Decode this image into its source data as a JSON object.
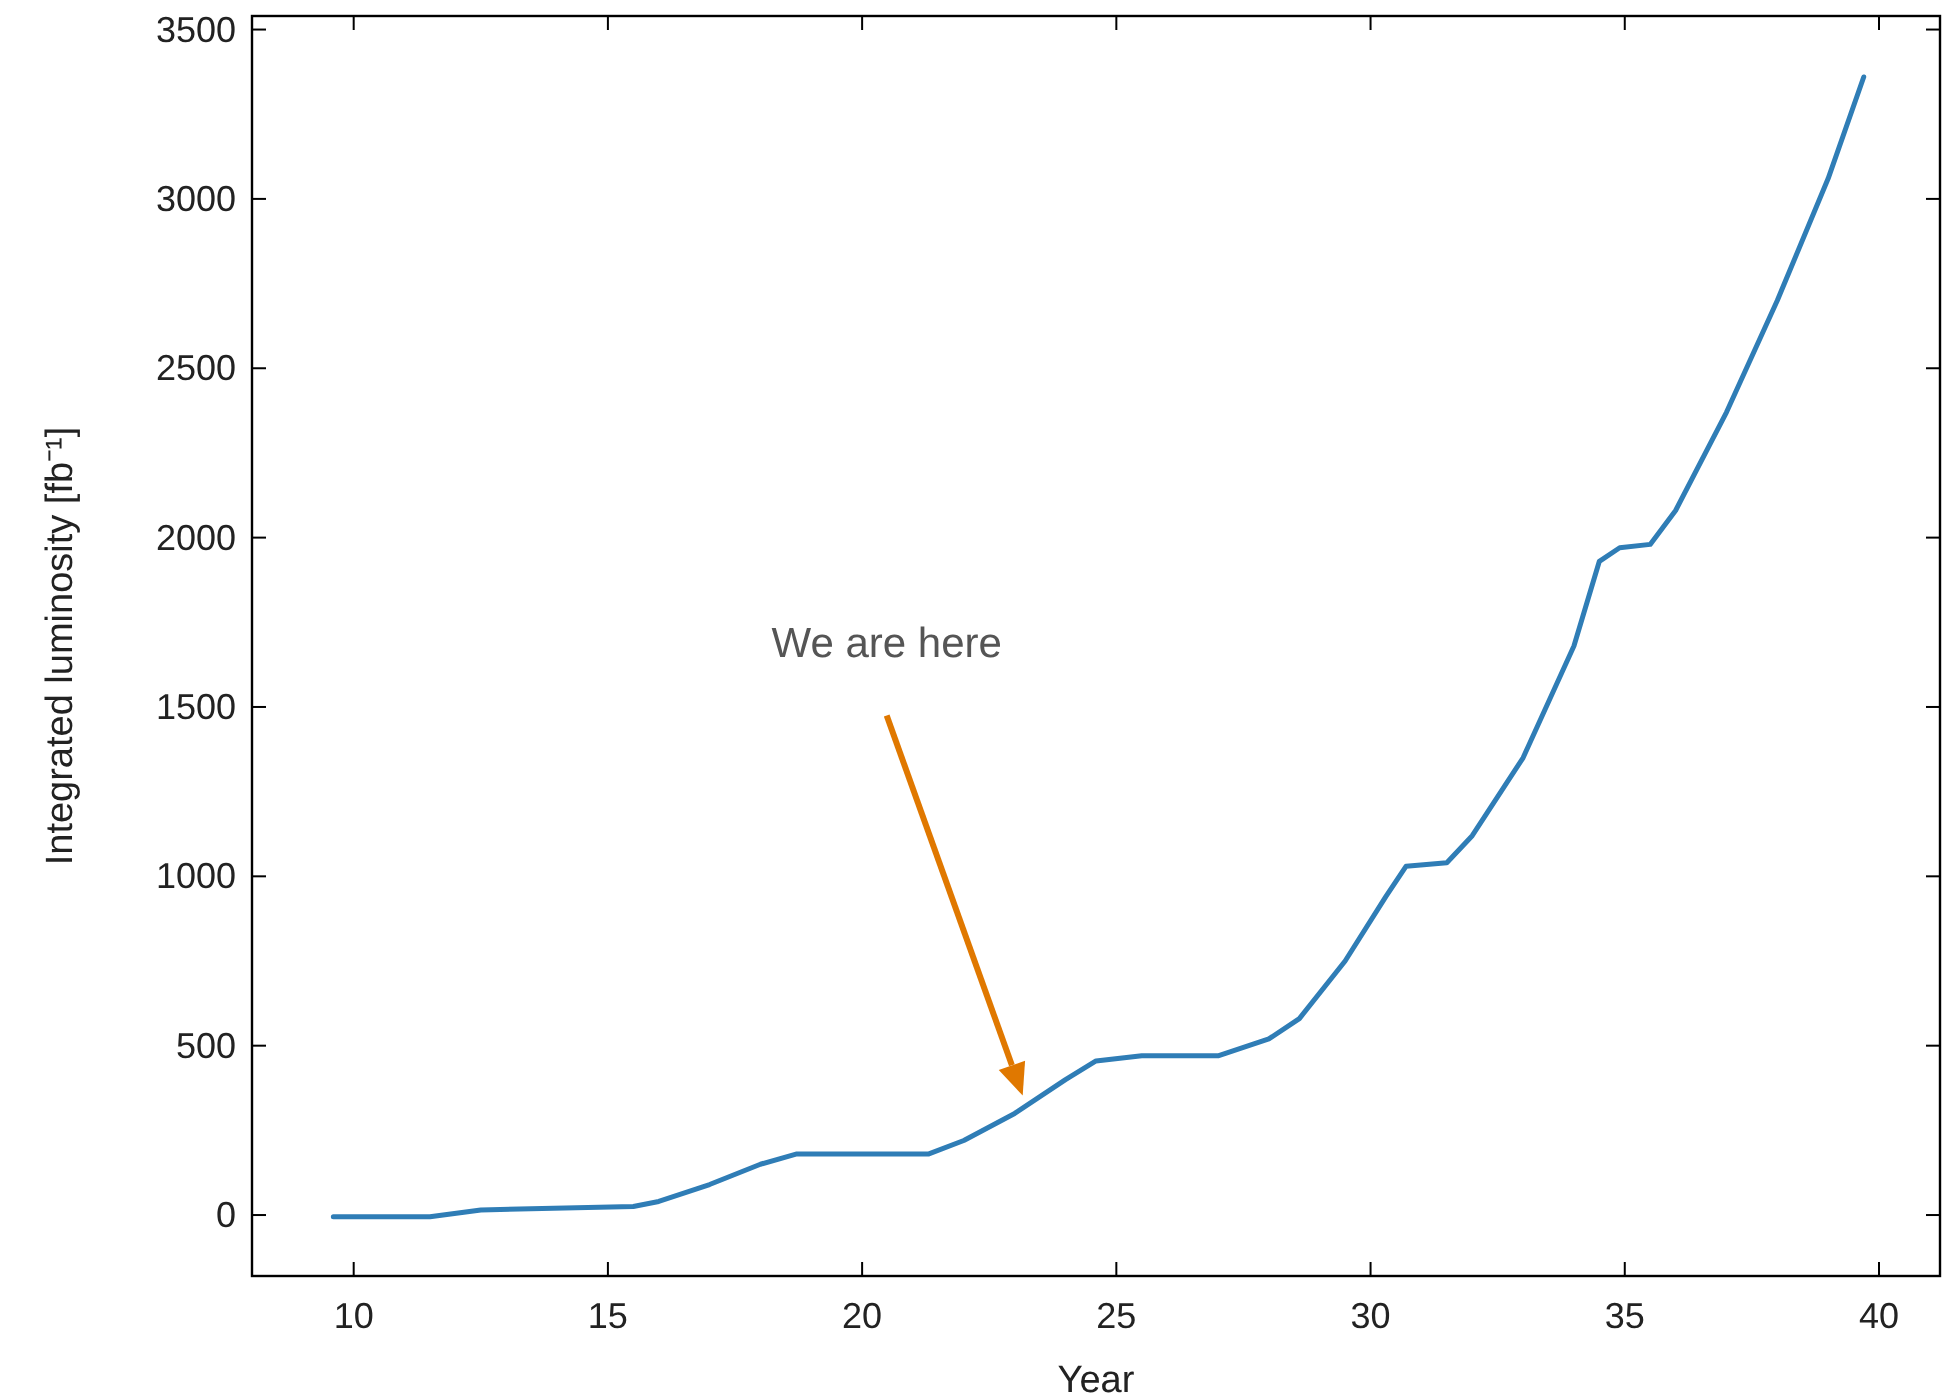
{
  "chart_data": {
    "type": "line",
    "xlabel": "Year",
    "ylabel": "Integrated luminosity [fb⁻¹]",
    "xlim": [
      8.0,
      41.2
    ],
    "ylim": [
      -180,
      3540
    ],
    "xticks": [
      10,
      15,
      20,
      25,
      30,
      35,
      40
    ],
    "yticks": [
      0,
      500,
      1000,
      1500,
      2000,
      2500,
      3000,
      3500
    ],
    "grid": false,
    "annotations": [
      "We are here"
    ],
    "series": [
      {
        "color": "#2f7db6",
        "x": [
          9.6,
          11.5,
          12.5,
          15.5,
          16,
          17,
          18,
          18.7,
          21.3,
          22,
          23,
          24,
          24.6,
          25.5,
          27,
          28,
          28.6,
          29.5,
          30.3,
          30.7,
          31.5,
          32,
          33,
          34,
          34.5,
          34.9,
          35.5,
          36,
          37,
          38,
          39,
          39.7
        ],
        "values": [
          -5,
          -5,
          15,
          25,
          40,
          90,
          150,
          180,
          180,
          220,
          300,
          400,
          455,
          470,
          470,
          520,
          580,
          750,
          940,
          1030,
          1040,
          1120,
          1350,
          1680,
          1930,
          1970,
          1980,
          2080,
          2370,
          2700,
          3060,
          3360
        ]
      }
    ]
  }
}
